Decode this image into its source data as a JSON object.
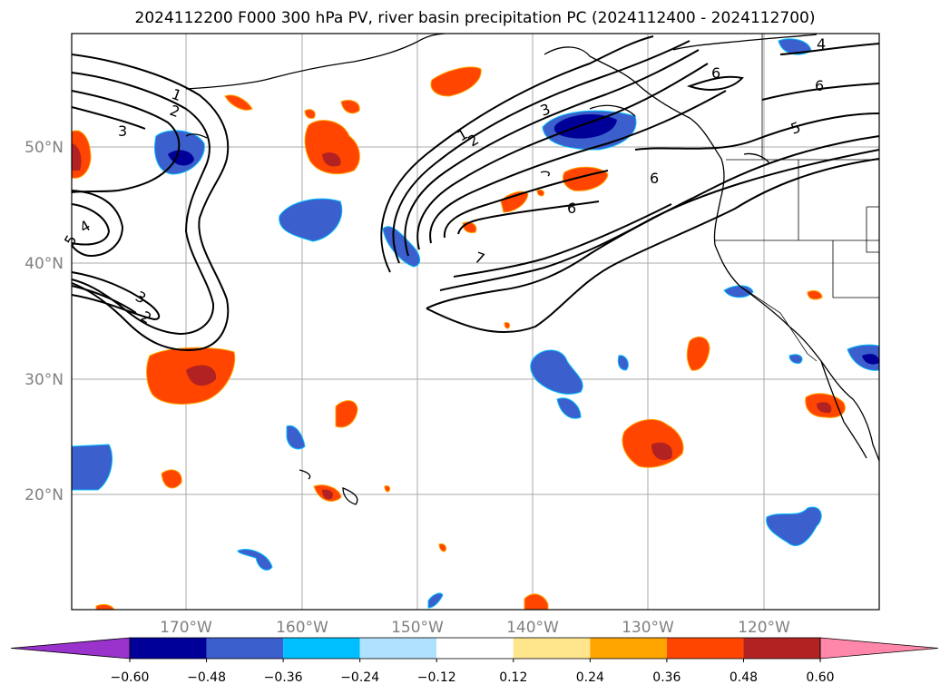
{
  "title": "2024112200 F000 300 hPa PV, river basin precipitation PC (2024112400 - 2024112700)",
  "lat_labels": [
    "50°N",
    "40°N",
    "30°N",
    "20°N"
  ],
  "lon_labels": [
    "170°W",
    "160°W",
    "150°W",
    "140°W",
    "130°W",
    "120°W"
  ],
  "contour_labels": [
    "1",
    "2",
    "3",
    "4",
    "5",
    "6",
    "7"
  ],
  "colorbar": {
    "ticks": [
      "−0.60",
      "−0.48",
      "−0.36",
      "−0.24",
      "−0.12",
      "0.12",
      "0.24",
      "0.36",
      "0.48",
      "0.60"
    ],
    "colors": [
      "#9933cc",
      "#000099",
      "#3b5fcc",
      "#00bfff",
      "#b0e2ff",
      "#ffffff",
      "#ffe68c",
      "#ffa500",
      "#ff4500",
      "#b22222",
      "#ff88aa"
    ]
  },
  "legend_colors": {
    "pos_0.36": "#ff4500",
    "pos_0.48": "#b22222",
    "neg_0.36": "#3b5fcc",
    "neg_0.48": "#000099",
    "outline_pos": "#ffa500",
    "outline_neg": "#00bfff"
  }
}
